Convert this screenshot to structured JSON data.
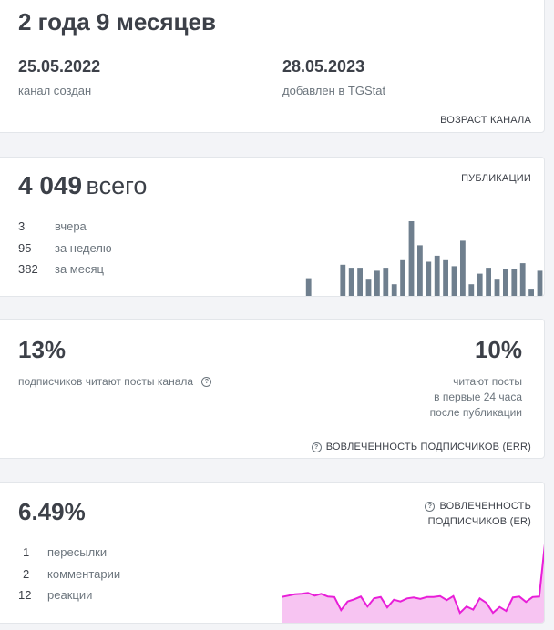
{
  "age_card": {
    "age": "2 года 9 месяцев",
    "created_date": "25.05.2022",
    "created_label": "канал создан",
    "added_date": "28.05.2023",
    "added_label": "добавлен в TGStat",
    "title": "ВОЗРАСТ КАНАЛА"
  },
  "posts_card": {
    "total_number": "4 049",
    "total_word": "всего",
    "title": "ПУБЛИКАЦИИ",
    "stats": [
      {
        "value": "3",
        "label": "вчера"
      },
      {
        "value": "95",
        "label": "за неделю"
      },
      {
        "value": "382",
        "label": "за месяц"
      }
    ]
  },
  "reach_card": {
    "left_percent": "13%",
    "left_label": "подписчиков читают посты канала",
    "right_percent": "10%",
    "right_label_lines": [
      "читают посты",
      "в первые 24 часа",
      "после публикации"
    ],
    "title": "ВОВЛЕЧЕННОСТЬ ПОДПИСЧИКОВ (ERR)",
    "help_glyph": "?"
  },
  "er_card": {
    "percent": "6.49%",
    "title_lines": [
      "ВОВЛЕЧЕННОСТЬ",
      "ПОДПИСЧИКОВ (ER)"
    ],
    "help_glyph": "?",
    "stats": [
      {
        "value": "1",
        "label": "пересылки"
      },
      {
        "value": "2",
        "label": "комментарии"
      },
      {
        "value": "12",
        "label": "реакции"
      }
    ]
  },
  "chart_data": [
    {
      "type": "bar",
      "values": [
        0.2,
        0.2,
        2.6,
        0.2,
        0.2,
        0.2,
        4.4,
        4.0,
        4.0,
        2.4,
        3.6,
        4.0,
        1.8,
        5.0,
        10.2,
        7.0,
        4.8,
        5.6,
        5.0,
        4.2,
        7.6,
        1.8,
        3.2,
        4.0,
        2.4,
        3.8,
        3.8,
        4.6,
        1.2,
        3.6
      ],
      "color": "#6f7f8e"
    },
    {
      "type": "area",
      "values": [
        5.3,
        5.6,
        5.9,
        6.0,
        6.2,
        5.6,
        6.0,
        5.4,
        5.3,
        2.4,
        4.3,
        4.8,
        5.4,
        3.2,
        5.0,
        5.3,
        3.0,
        4.7,
        4.3,
        5.0,
        5.2,
        4.9,
        5.3,
        5.3,
        5.5,
        4.6,
        5.5,
        1.8,
        3.2,
        2.5,
        5.0,
        4.0,
        1.8,
        3.1,
        2.2,
        5.2,
        5.4,
        4.2,
        5.3,
        5.4,
        19.0
      ],
      "line_color": "#e81ed8",
      "fill_color": "#f7c4f2"
    }
  ]
}
